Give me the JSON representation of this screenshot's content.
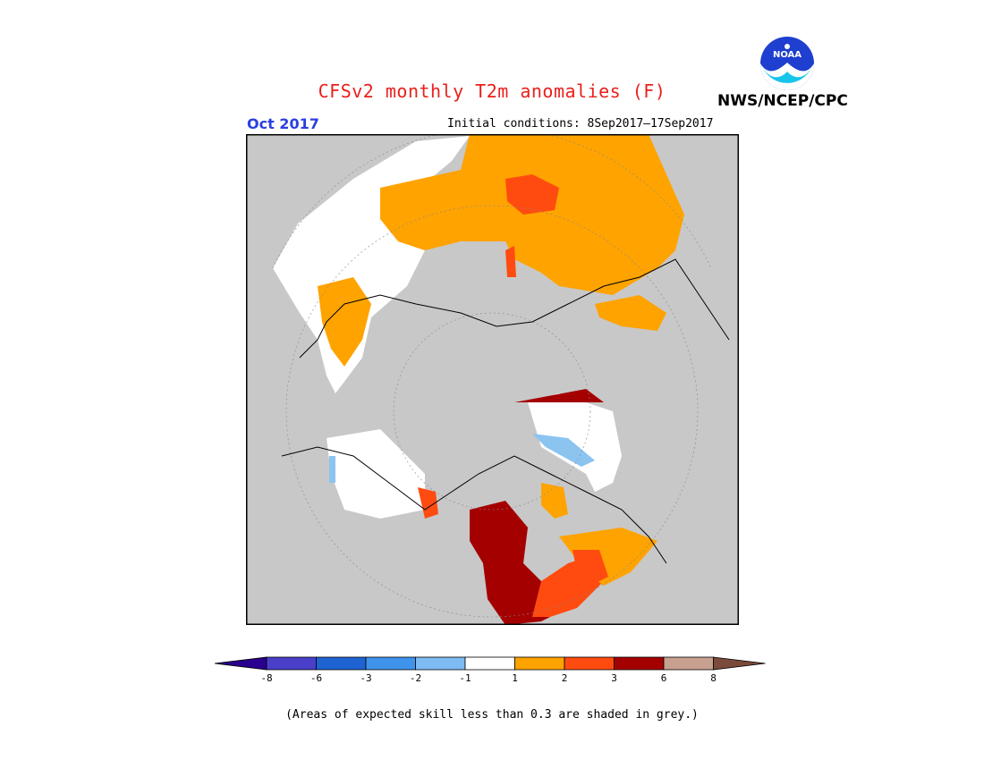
{
  "title": "CFSv2 monthly T2m anomalies (F)",
  "valid_month": "Oct 2017",
  "initial_conditions": "Initial conditions: 8Sep2017–17Sep2017",
  "agency": "NWS/NCEP/CPC",
  "logo_text": "NOAA",
  "footnote": "(Areas of expected skill less than 0.3 are shaded in grey.)",
  "colors": {
    "low_skill": "#c8c8c8",
    "near_normal": "#ffffff",
    "plus_1_2": "#ffa300",
    "plus_2_3": "#ff4b10",
    "plus_3_6": "#a50000",
    "minus_1_2": "#8cc4f0",
    "title": "#e8201c",
    "month": "#2a3fe0"
  },
  "legend": {
    "bins": [
      {
        "color": "#2a008f",
        "range": "< -8"
      },
      {
        "color": "#4a3fc8",
        "range": "-8 to -6"
      },
      {
        "color": "#1f63d2",
        "range": "-6 to -3"
      },
      {
        "color": "#3f93eb",
        "range": "-3 to -2"
      },
      {
        "color": "#7dbbf2",
        "range": "-2 to -1"
      },
      {
        "color": "#ffffff",
        "range": "-1 to 1"
      },
      {
        "color": "#ffa300",
        "range": "1 to 2"
      },
      {
        "color": "#ff4b10",
        "range": "2 to 3"
      },
      {
        "color": "#a50000",
        "range": "3 to 6"
      },
      {
        "color": "#c8a090",
        "range": "6 to 8"
      },
      {
        "color": "#7a4a3a",
        "range": "> 8"
      }
    ],
    "tick_labels": [
      "-8",
      "-6",
      "-3",
      "-2",
      "-1",
      "1",
      "2",
      "3",
      "6",
      "8"
    ]
  }
}
